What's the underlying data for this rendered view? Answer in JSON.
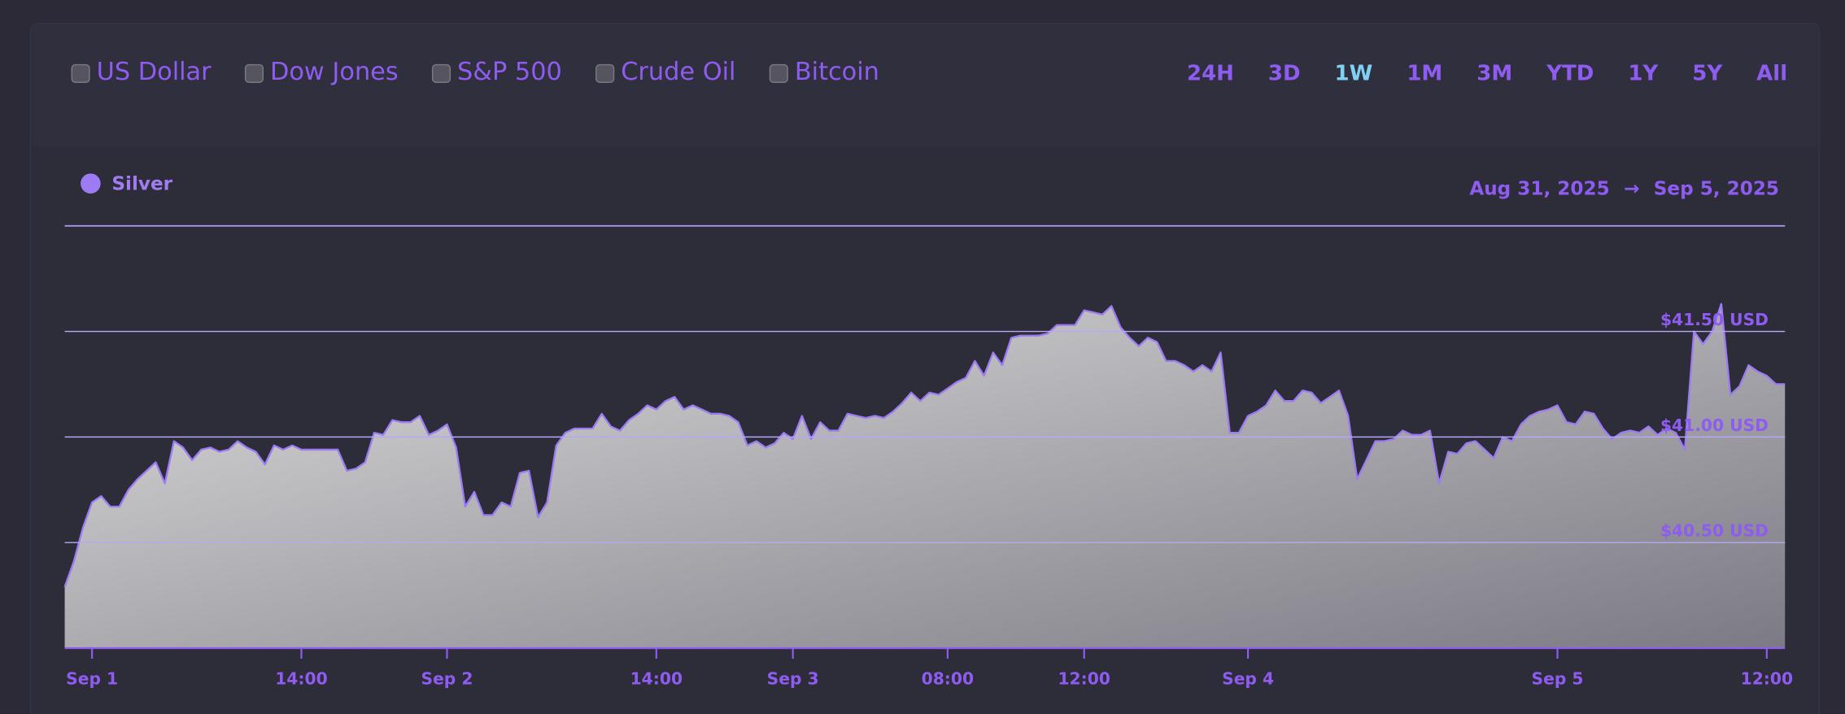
{
  "filters": [
    "US Dollar",
    "Dow Jones",
    "S&P 500",
    "Crude Oil",
    "Bitcoin"
  ],
  "ranges": [
    {
      "label": "24H",
      "active": false
    },
    {
      "label": "3D",
      "active": false
    },
    {
      "label": "1W",
      "active": true
    },
    {
      "label": "1M",
      "active": false
    },
    {
      "label": "3M",
      "active": false
    },
    {
      "label": "YTD",
      "active": false
    },
    {
      "label": "1Y",
      "active": false
    },
    {
      "label": "5Y",
      "active": false
    },
    {
      "label": "All",
      "active": false
    }
  ],
  "date_range": {
    "start": "Aug 31, 2025",
    "arrow": "→",
    "end": "Sep 5, 2025"
  },
  "chart_data": {
    "type": "area",
    "categories": [
      null,
      null,
      null,
      "Sep 1",
      null,
      null,
      null,
      null,
      null,
      null,
      null,
      null,
      null,
      null,
      null,
      null,
      null,
      null,
      null,
      null,
      null,
      null,
      null,
      null,
      null,
      null,
      "14:00",
      null,
      null,
      null,
      null,
      null,
      null,
      null,
      null,
      null,
      null,
      null,
      null,
      null,
      null,
      null,
      "Sep 2",
      null,
      null,
      null,
      null,
      null,
      null,
      null,
      null,
      null,
      null,
      null,
      null,
      null,
      null,
      null,
      null,
      null,
      null,
      null,
      null,
      null,
      null,
      "14:00",
      null,
      null,
      null,
      null,
      null,
      null,
      null,
      null,
      null,
      null,
      null,
      null,
      null,
      null,
      "Sep 3",
      null,
      null,
      null,
      null,
      null,
      null,
      null,
      null,
      null,
      null,
      null,
      null,
      null,
      null,
      null,
      null,
      "08:00",
      null,
      null,
      null,
      null,
      null,
      null,
      null,
      null,
      null,
      null,
      null,
      null,
      null,
      null,
      "12:00",
      null,
      null,
      null,
      null,
      null,
      null,
      null,
      null,
      null,
      null,
      null,
      null,
      null,
      null,
      null,
      null,
      null,
      "Sep 4",
      null,
      null,
      null,
      null,
      null,
      null,
      null,
      null,
      null,
      null,
      null,
      null,
      null,
      null,
      null,
      null,
      null,
      null,
      null,
      null,
      null,
      null,
      null,
      null,
      null,
      null,
      null,
      null,
      null,
      null,
      null,
      null,
      null,
      "Sep 5",
      null,
      null,
      null,
      null,
      null,
      null,
      null,
      null,
      null,
      null,
      null,
      null,
      null,
      null,
      null,
      null,
      null,
      null,
      null,
      null,
      null,
      null,
      "12:00",
      null,
      null
    ],
    "series": [
      {
        "name": "Silver",
        "color": "#9d7bf2",
        "values": [
          40.29,
          40.41,
          40.57,
          40.69,
          40.72,
          40.67,
          40.67,
          40.75,
          40.8,
          40.84,
          40.88,
          40.78,
          40.98,
          40.95,
          40.89,
          40.94,
          40.95,
          40.93,
          40.94,
          40.98,
          40.95,
          40.93,
          40.87,
          40.96,
          40.94,
          40.96,
          40.94,
          40.94,
          40.94,
          40.94,
          40.94,
          40.84,
          40.85,
          40.88,
          41.02,
          41.01,
          41.08,
          41.07,
          41.07,
          41.1,
          41.01,
          41.03,
          41.06,
          40.95,
          40.67,
          40.74,
          40.63,
          40.63,
          40.69,
          40.67,
          40.83,
          40.84,
          40.62,
          40.69,
          40.96,
          41.02,
          41.04,
          41.04,
          41.04,
          41.11,
          41.05,
          41.03,
          41.08,
          41.11,
          41.15,
          41.13,
          41.17,
          41.19,
          41.13,
          41.15,
          41.13,
          41.11,
          41.11,
          41.1,
          41.07,
          40.96,
          40.98,
          40.95,
          40.97,
          41.02,
          40.99,
          41.1,
          40.99,
          41.07,
          41.03,
          41.03,
          41.11,
          41.1,
          41.09,
          41.1,
          41.09,
          41.12,
          41.16,
          41.21,
          41.17,
          41.21,
          41.2,
          41.23,
          41.26,
          41.28,
          41.36,
          41.29,
          41.4,
          41.34,
          41.47,
          41.48,
          41.48,
          41.48,
          41.49,
          41.53,
          41.53,
          41.53,
          41.6,
          41.59,
          41.58,
          41.62,
          41.52,
          41.47,
          41.43,
          41.47,
          41.45,
          41.36,
          41.36,
          41.34,
          41.31,
          41.34,
          41.31,
          41.4,
          41.02,
          41.02,
          41.1,
          41.12,
          41.15,
          41.22,
          41.17,
          41.17,
          41.22,
          41.21,
          41.16,
          41.19,
          41.22,
          41.1,
          40.8,
          40.89,
          40.98,
          40.98,
          40.99,
          41.03,
          41.01,
          41.01,
          41.03,
          40.78,
          40.93,
          40.92,
          40.97,
          40.98,
          40.94,
          40.9,
          41.0,
          40.98,
          41.06,
          41.1,
          41.12,
          41.13,
          41.15,
          41.07,
          41.06,
          41.12,
          41.11,
          41.04,
          40.99,
          41.02,
          41.03,
          41.02,
          41.05,
          41.01,
          41.04,
          41.02,
          40.94,
          41.5,
          41.44,
          41.5,
          41.63,
          41.2,
          41.24,
          41.34,
          41.31,
          41.29,
          41.25,
          41.25
        ]
      }
    ],
    "ylim": [
      40,
      42
    ],
    "yticks": [
      {
        "value": 40.5,
        "label": "$40.50 USD"
      },
      {
        "value": 41,
        "label": "$41.00 USD"
      },
      {
        "value": 41.5,
        "label": "$41.50 USD"
      }
    ],
    "grid": true
  }
}
